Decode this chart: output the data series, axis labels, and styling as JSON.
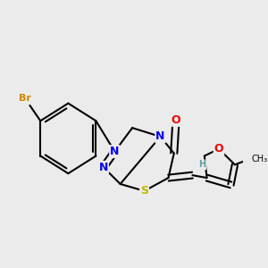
{
  "background_color": "#ebebeb",
  "bond_color": "#000000",
  "bond_width": 1.5,
  "atom_colors": {
    "Br": "#cc8800",
    "N": "#0000ee",
    "O": "#ee0000",
    "S": "#bbbb00",
    "H": "#5f9ea0",
    "C": "#000000"
  },
  "font_size": 9
}
